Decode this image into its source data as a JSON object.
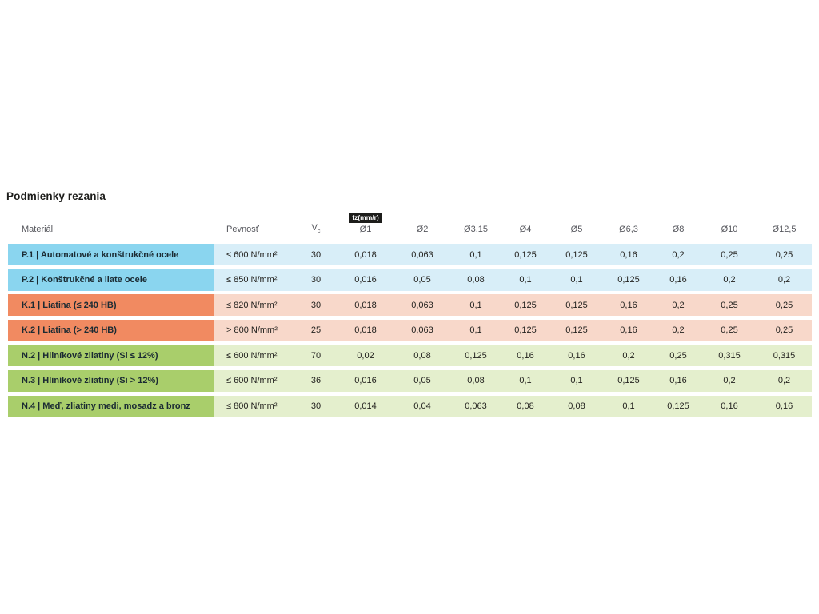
{
  "title": "Podmienky rezania",
  "table": {
    "badge": "fz(mm/r)",
    "headers": {
      "material": "Materiál",
      "pevnost": "Pevnosť",
      "vc_main": "V",
      "vc_sub": "c",
      "diameters": [
        "Ø1",
        "Ø2",
        "Ø3,15",
        "Ø4",
        "Ø5",
        "Ø6,3",
        "Ø8",
        "Ø10",
        "Ø12,5"
      ]
    },
    "rows": [
      {
        "group": "P",
        "material": "P.1 | Automatové a konštrukčné ocele",
        "pevnost": "≤ 600 N/mm²",
        "vc": "30",
        "values": [
          "0,018",
          "0,063",
          "0,1",
          "0,125",
          "0,125",
          "0,16",
          "0,2",
          "0,25",
          "0,25"
        ]
      },
      {
        "group": "P",
        "material": "P.2 | Konštrukčné a liate ocele",
        "pevnost": "≤ 850 N/mm²",
        "vc": "30",
        "values": [
          "0,016",
          "0,05",
          "0,08",
          "0,1",
          "0,1",
          "0,125",
          "0,16",
          "0,2",
          "0,2"
        ]
      },
      {
        "group": "K",
        "material": "K.1 | Liatina (≤ 240 HB)",
        "pevnost": "≤ 820 N/mm²",
        "vc": "30",
        "values": [
          "0,018",
          "0,063",
          "0,1",
          "0,125",
          "0,125",
          "0,16",
          "0,2",
          "0,25",
          "0,25"
        ]
      },
      {
        "group": "K",
        "material": "K.2 | Liatina (> 240 HB)",
        "pevnost": "> 800 N/mm²",
        "vc": "25",
        "values": [
          "0,018",
          "0,063",
          "0,1",
          "0,125",
          "0,125",
          "0,16",
          "0,2",
          "0,25",
          "0,25"
        ]
      },
      {
        "group": "N",
        "material": "N.2 | Hliníkové zliatiny (Si ≤ 12%)",
        "pevnost": "≤ 600 N/mm²",
        "vc": "70",
        "values": [
          "0,02",
          "0,08",
          "0,125",
          "0,16",
          "0,16",
          "0,2",
          "0,25",
          "0,315",
          "0,315"
        ]
      },
      {
        "group": "N",
        "material": "N.3 | Hliníkové zliatiny (Si > 12%)",
        "pevnost": "≤ 600 N/mm²",
        "vc": "36",
        "values": [
          "0,016",
          "0,05",
          "0,08",
          "0,1",
          "0,1",
          "0,125",
          "0,16",
          "0,2",
          "0,2"
        ]
      },
      {
        "group": "N",
        "material": "N.4 | Meď, zliatiny medi, mosadz a bronz",
        "pevnost": "≤ 800 N/mm²",
        "vc": "30",
        "values": [
          "0,014",
          "0,04",
          "0,063",
          "0,08",
          "0,08",
          "0,1",
          "0,125",
          "0,16",
          "0,16"
        ]
      }
    ],
    "colors": {
      "P": {
        "strong": "#8ad5ef",
        "light": "#d8eef8"
      },
      "K": {
        "strong": "#f18a61",
        "light": "#f8d8ca"
      },
      "N": {
        "strong": "#a9ce6b",
        "light": "#e4efcd"
      },
      "badge_bg": "#1d1d1b",
      "badge_text": "#ffffff",
      "header_text": "#55565c",
      "title_text": "#1d1d1b"
    }
  }
}
